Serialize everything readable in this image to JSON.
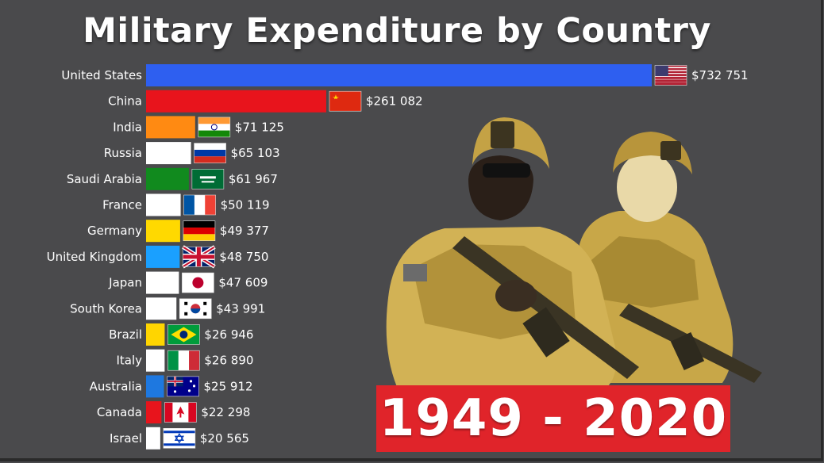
{
  "title": "Military Expenditure by Country",
  "year_banner": "1949 - 2020",
  "colors": {
    "background": "#4a4a4c",
    "banner": "#e0242a"
  },
  "chart_data": {
    "type": "bar",
    "orientation": "horizontal",
    "title": "Military Expenditure by Country",
    "categories": [
      "United States",
      "China",
      "India",
      "Russia",
      "Saudi Arabia",
      "France",
      "Germany",
      "United Kingdom",
      "Japan",
      "South Korea",
      "Brazil",
      "Italy",
      "Australia",
      "Canada",
      "Israel"
    ],
    "values": [
      732751,
      261082,
      71125,
      65103,
      61967,
      50119,
      49377,
      48750,
      47609,
      43991,
      26946,
      26890,
      25912,
      22298,
      20565
    ],
    "value_labels": [
      "$732 751",
      "$261 082",
      "$71 125",
      "$65 103",
      "$61 967",
      "$50 119",
      "$49 377",
      "$48 750",
      "$47 609",
      "$43 991",
      "$26 946",
      "$26 890",
      "$25 912",
      "$22 298",
      "$20 565"
    ],
    "bar_colors": [
      "#2e5ff0",
      "#e8141c",
      "#ff8a12",
      "#ffffff",
      "#118a1e",
      "#ffffff",
      "#ffd900",
      "#1aa0ff",
      "#ffffff",
      "#ffffff",
      "#ffd500",
      "#ffffff",
      "#1e78e0",
      "#e8141c",
      "#ffffff"
    ],
    "flag_icons": [
      "us-flag-icon",
      "china-flag-icon",
      "india-flag-icon",
      "russia-flag-icon",
      "saudi-arabia-flag-icon",
      "france-flag-icon",
      "germany-flag-icon",
      "uk-flag-icon",
      "japan-flag-icon",
      "south-korea-flag-icon",
      "brazil-flag-icon",
      "italy-flag-icon",
      "australia-flag-icon",
      "canada-flag-icon",
      "israel-flag-icon"
    ],
    "flags": [
      "us",
      "cn",
      "in",
      "ru",
      "sa",
      "fr",
      "de",
      "gb",
      "jp",
      "kr",
      "br",
      "it",
      "au",
      "ca",
      "il"
    ]
  }
}
